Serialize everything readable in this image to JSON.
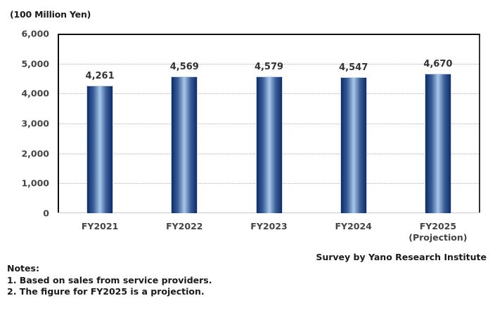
{
  "chart_data": {
    "type": "bar",
    "title": "",
    "unit_label": "(100 Million Yen)",
    "xlabel": "",
    "ylabel": "(100 Million Yen)",
    "categories": [
      "FY2021",
      "FY2022",
      "FY2023",
      "FY2024",
      "FY2025\n(Projection)"
    ],
    "values": [
      4261,
      4569,
      4579,
      4547,
      4670
    ],
    "value_labels": [
      "4,261",
      "4,569",
      "4,579",
      "4,547",
      "4,670"
    ],
    "ylim": [
      0,
      6000
    ],
    "yticks": [
      0,
      1000,
      2000,
      3000,
      4000,
      5000,
      6000
    ],
    "ytick_labels": [
      "0",
      "1,000",
      "2,000",
      "3,000",
      "4,000",
      "5,000",
      "6,000"
    ],
    "grid": true,
    "legend": null,
    "bar_color_gradient": [
      "#0d2b66",
      "#a9c7e8"
    ]
  },
  "x_labels": [
    {
      "line1": "FY2021",
      "line2": ""
    },
    {
      "line1": "FY2022",
      "line2": ""
    },
    {
      "line1": "FY2023",
      "line2": ""
    },
    {
      "line1": "FY2024",
      "line2": ""
    },
    {
      "line1": "FY2025",
      "line2": "(Projection)"
    }
  ],
  "source": "Survey by Yano Research Institute",
  "notes": {
    "heading": "Notes:",
    "items": [
      "1. Based on sales from service providers.",
      "2. The figure for FY2025 is a projection."
    ]
  }
}
